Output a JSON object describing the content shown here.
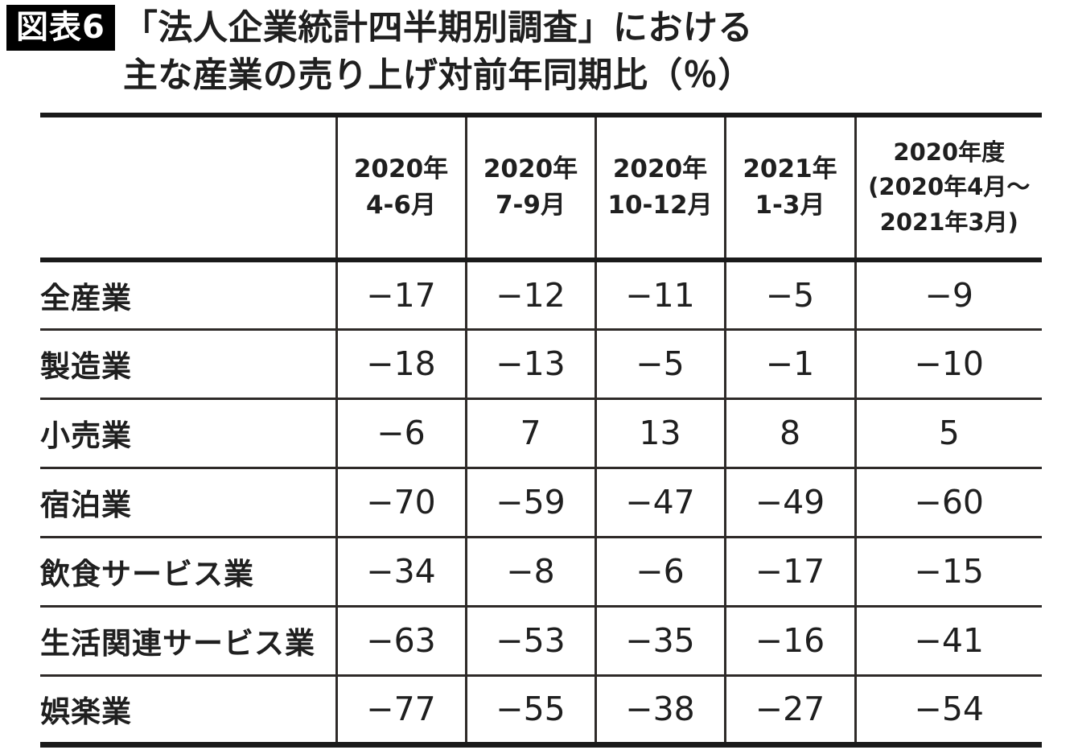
{
  "figure": {
    "badge": "図表6",
    "title_line1": "「法人企業統計四半期別調査」における",
    "title_line2": "主な産業の売り上げ対前年同期比（％）"
  },
  "table": {
    "col_headers": [
      {
        "lines": [
          "2020年",
          "4-6月"
        ]
      },
      {
        "lines": [
          "2020年",
          "7-9月"
        ]
      },
      {
        "lines": [
          "2020年",
          "10-12月"
        ]
      },
      {
        "lines": [
          "2021年",
          "1-3月"
        ]
      },
      {
        "lines": [
          "2020年度",
          "(2020年4月～",
          "2021年3月)"
        ]
      }
    ],
    "rows": [
      {
        "label": "全産業",
        "display": [
          "−17",
          "−12",
          "−11",
          "−5",
          "−9"
        ]
      },
      {
        "label": "製造業",
        "display": [
          "−18",
          "−13",
          "−5",
          "−1",
          "−10"
        ]
      },
      {
        "label": "小売業",
        "display": [
          "−6",
          "7",
          "13",
          "8",
          "5"
        ]
      },
      {
        "label": "宿泊業",
        "display": [
          "−70",
          "−59",
          "−47",
          "−49",
          "−60"
        ]
      },
      {
        "label": "飲食サービス業",
        "display": [
          "−34",
          "−8",
          "−6",
          "−17",
          "−15"
        ]
      },
      {
        "label": "生活関連サービス業",
        "display": [
          "−63",
          "−53",
          "−35",
          "−16",
          "−41"
        ]
      },
      {
        "label": "娯楽業",
        "display": [
          "−77",
          "−55",
          "−38",
          "−27",
          "−54"
        ]
      }
    ]
  },
  "chart_data": {
    "type": "table",
    "title": "「法人企業統計四半期別調査」における主な産業の売り上げ対前年同期比（％）",
    "unit": "%",
    "columns": [
      "2020年4-6月",
      "2020年7-9月",
      "2020年10-12月",
      "2021年1-3月",
      "2020年度(2020年4月～2021年3月)"
    ],
    "series": [
      {
        "name": "全産業",
        "values": [
          -17,
          -12,
          -11,
          -5,
          -9
        ]
      },
      {
        "name": "製造業",
        "values": [
          -18,
          -13,
          -5,
          -1,
          -10
        ]
      },
      {
        "name": "小売業",
        "values": [
          -6,
          7,
          13,
          8,
          5
        ]
      },
      {
        "name": "宿泊業",
        "values": [
          -70,
          -59,
          -47,
          -49,
          -60
        ]
      },
      {
        "name": "飲食サービス業",
        "values": [
          -34,
          -8,
          -6,
          -17,
          -15
        ]
      },
      {
        "name": "生活関連サービス業",
        "values": [
          -63,
          -53,
          -35,
          -16,
          -41
        ]
      },
      {
        "name": "娯楽業",
        "values": [
          -77,
          -55,
          -38,
          -27,
          -54
        ]
      }
    ]
  },
  "colors": {
    "background": "#ffffff",
    "text": "#1f1f1f",
    "grid_line": "#2e2a28",
    "heavy_line": "#1a1a1a",
    "badge_bg": "#000000",
    "badge_text": "#ffffff"
  }
}
